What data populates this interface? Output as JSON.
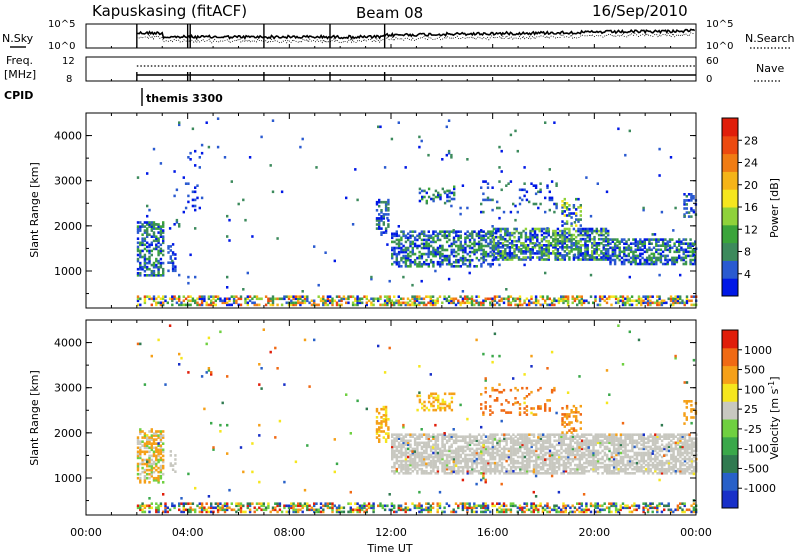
{
  "header": {
    "station": "Kapuskasing (fitACF)",
    "beam": "Beam 08",
    "date": "16/Sep/2010"
  },
  "summary": {
    "nsky_label": "N.Sky",
    "nsky_ticks": [
      "10^5",
      "10^0"
    ],
    "nsearch_label": "N.Search",
    "nsearch_ticks": [
      "10^5",
      "10^0"
    ],
    "freq_label_1": "Freq.",
    "freq_label_2": "[MHz]",
    "freq_ticks": [
      "12",
      "8"
    ],
    "nave_label": "Nave",
    "nave_ticks": [
      "60",
      "0"
    ],
    "cpid_label": "CPID",
    "cpid_program": "themis 3300"
  },
  "colors": {
    "power_scale": [
      "#0018e6",
      "#2a5ad0",
      "#3c8a5c",
      "#3aa43a",
      "#8fd23a",
      "#f5e61e",
      "#f5b418",
      "#f07c14",
      "#ec4a10",
      "#e01e0a"
    ],
    "velocity_scale": [
      "#1830c8",
      "#2860c8",
      "#307a50",
      "#3aa84a",
      "#6fd040",
      "#c8c8c0",
      "#f5e61e",
      "#f5a018",
      "#f06a14",
      "#e01e0a"
    ]
  },
  "chart_data": [
    {
      "type": "heatmap",
      "panel": "power",
      "ylabel": "Slant Range [km]",
      "ylim": [
        180,
        4500
      ],
      "xlim": [
        "00:00",
        "24:00"
      ],
      "yticks": [
        "1000",
        "2000",
        "3000",
        "4000"
      ],
      "colorbar_label": "Power [dB]",
      "colorbar_ticks": [
        "4",
        "8",
        "12",
        "16",
        "20",
        "24",
        "28"
      ],
      "colorbar_range": [
        0,
        30
      ],
      "data_start_hour": 2.0
    },
    {
      "type": "heatmap",
      "panel": "velocity",
      "ylabel": "Slant Range [km]",
      "ylim": [
        180,
        4500
      ],
      "xlim": [
        "00:00",
        "24:00"
      ],
      "yticks": [
        "1000",
        "2000",
        "3000",
        "4000"
      ],
      "xticks": [
        "00:00",
        "04:00",
        "08:00",
        "12:00",
        "16:00",
        "20:00",
        "00:00"
      ],
      "xlabel": "Time UT",
      "colorbar_label": "Velocity [m s",
      "colorbar_label_sup": "-1",
      "colorbar_label_end": "]",
      "colorbar_ticks": [
        "1000",
        "500",
        "100",
        "25",
        "-25",
        "-100",
        "-500",
        "-1000"
      ],
      "data_start_hour": 2.0
    }
  ]
}
